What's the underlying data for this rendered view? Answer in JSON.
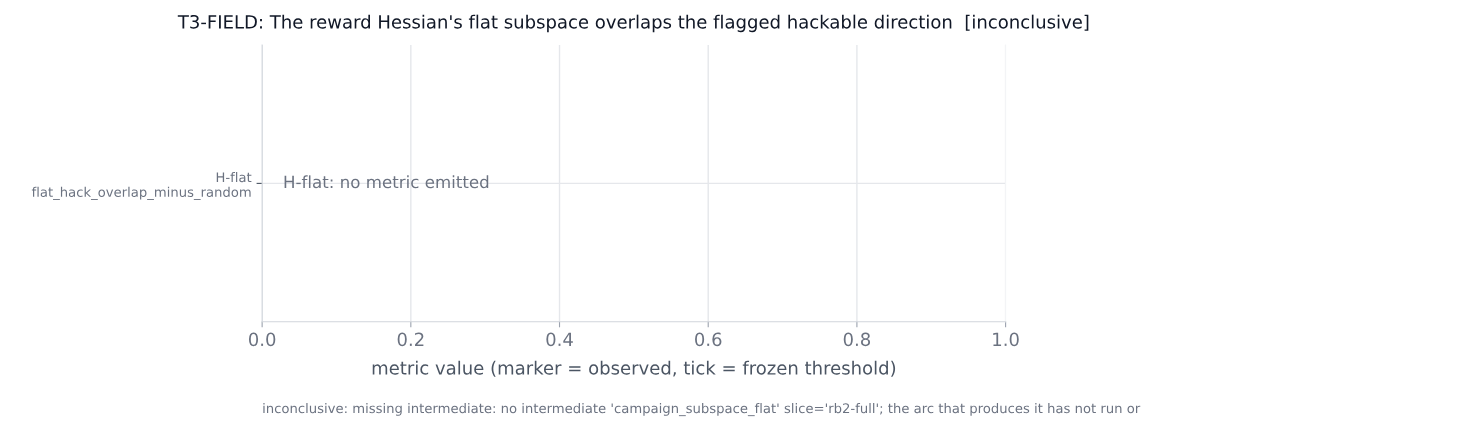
{
  "chart_data": {
    "type": "scatter",
    "orientation": "horizontal",
    "title": "T3-FIELD: The reward Hessian's flat subspace overlaps the flagged hackable direction  [inconclusive]",
    "categories": [
      "H-flat\nflat_hack_overlap_minus_random"
    ],
    "values": [
      null
    ],
    "xlim": [
      0,
      1
    ],
    "xticks": [
      {
        "value": 0,
        "label": "0.0"
      },
      0.2,
      0.4,
      0.6,
      0.8,
      {
        "value": 1,
        "label": "1.0"
      }
    ],
    "xlabel": "metric value (marker = observed, tick = frozen threshold)",
    "annotations": [
      "H-flat: no metric emitted",
      "inconclusive: missing intermediate: no intermediate 'campaign_subspace_flat' slice='rb2-full'; the arc that produces it has not run or"
    ],
    "grid": true
  }
}
